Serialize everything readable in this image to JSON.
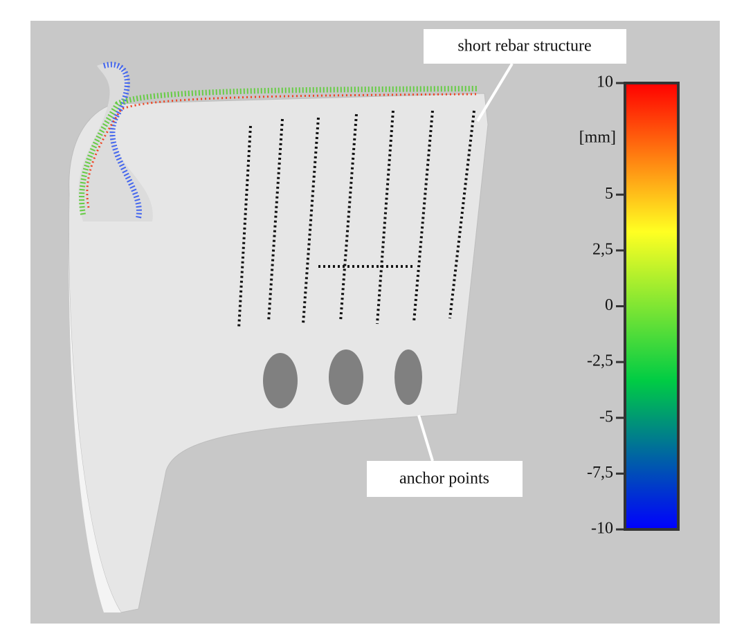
{
  "annotations": [
    "short rebar structure",
    "anchor points"
  ],
  "colorbar": {
    "unit": "[mm]",
    "range": [
      -10,
      10
    ],
    "ticks": [
      10,
      5,
      {
        "value": 2.5,
        "label": "2,5"
      },
      0,
      {
        "value": -2.5,
        "label": "-2,5"
      },
      -5,
      {
        "value": -7.5,
        "label": "-7,5"
      },
      -10
    ],
    "colors": [
      "#0000ff",
      "#00cc44",
      "#ffff22",
      "#ff0000"
    ]
  }
}
